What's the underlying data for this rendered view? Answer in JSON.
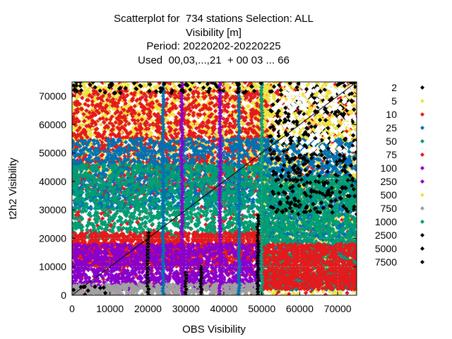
{
  "chart_data": {
    "type": "scatter",
    "title_lines": [
      "Scatterplot for  734 stations Selection: ALL",
      "Visibility [m]",
      "Period: 20220202-20220225",
      "Used  00,03,...,21  + 00 03 ... 66"
    ],
    "xlabel": "OBS Visibility",
    "ylabel": "t2h2 Visibility",
    "xlim": [
      0,
      75000
    ],
    "ylim": [
      0,
      75000
    ],
    "x_ticks": [
      0,
      10000,
      20000,
      30000,
      40000,
      50000,
      60000,
      70000
    ],
    "y_ticks": [
      0,
      10000,
      20000,
      30000,
      40000,
      50000,
      60000,
      70000
    ],
    "grid": true,
    "diagonal_line": true,
    "legend_placement": "right",
    "series": [
      {
        "name": "2",
        "color": "#000000",
        "marker": "diamond"
      },
      {
        "name": "5",
        "color": "#f0e442",
        "marker": "diamond"
      },
      {
        "name": "10",
        "color": "#e41a1c",
        "marker": "diamond"
      },
      {
        "name": "25",
        "color": "#0072b2",
        "marker": "diamond"
      },
      {
        "name": "50",
        "color": "#009e73",
        "marker": "diamond"
      },
      {
        "name": "75",
        "color": "#e41a1c",
        "marker": "diamond"
      },
      {
        "name": "100",
        "color": "#8a00cc",
        "marker": "diamond"
      },
      {
        "name": "250",
        "color": "#8a00cc",
        "marker": "diamond"
      },
      {
        "name": "500",
        "color": "#f0e442",
        "marker": "diamond"
      },
      {
        "name": "750",
        "color": "#a0a0a0",
        "marker": "diamond"
      },
      {
        "name": "1000",
        "color": "#009e73",
        "marker": "diamond"
      },
      {
        "name": "2500",
        "color": "#000000",
        "marker": "diamond"
      },
      {
        "name": "5000",
        "color": "#000000",
        "marker": "diamond"
      },
      {
        "name": "7500",
        "color": "#000000",
        "marker": "diamond"
      }
    ],
    "density_regions": [
      {
        "series": "10",
        "x": [
          0,
          75000
        ],
        "y": [
          0,
          75000
        ]
      },
      {
        "series": "5",
        "x": [
          0,
          52000
        ],
        "y": [
          42000,
          75000
        ]
      },
      {
        "series": "10",
        "x": [
          0,
          52000
        ],
        "y": [
          36000,
          72000
        ]
      },
      {
        "series": "25",
        "x": [
          0,
          52000
        ],
        "y": [
          30000,
          55000
        ]
      },
      {
        "series": "50",
        "x": [
          0,
          52000
        ],
        "y": [
          20000,
          46000
        ]
      },
      {
        "series": "10",
        "x": [
          0,
          52000
        ],
        "y": [
          10000,
          22000
        ]
      },
      {
        "series": "100",
        "x": [
          0,
          50000
        ],
        "y": [
          2000,
          18000
        ]
      },
      {
        "series": "750",
        "x": [
          0,
          50000
        ],
        "y": [
          0,
          4000
        ]
      },
      {
        "series": "5",
        "x": [
          50000,
          75000
        ],
        "y": [
          0,
          75000
        ]
      },
      {
        "series": "25",
        "x": [
          50000,
          75000
        ],
        "y": [
          2000,
          55000
        ]
      },
      {
        "series": "50",
        "x": [
          50000,
          75000
        ],
        "y": [
          2000,
          42000
        ]
      },
      {
        "series": "10",
        "x": [
          50000,
          75000
        ],
        "y": [
          2000,
          18000
        ]
      }
    ],
    "vertical_streaks": [
      {
        "series": "2500",
        "x": 20000,
        "y": [
          0,
          22000
        ]
      },
      {
        "series": "2500",
        "x": 49000,
        "y": [
          0,
          28000
        ]
      },
      {
        "series": "2500",
        "x": 30000,
        "y": [
          0,
          8000
        ]
      },
      {
        "series": "2500",
        "x": 34000,
        "y": [
          0,
          10000
        ]
      },
      {
        "series": "1000",
        "x": 50000,
        "y": [
          0,
          75000
        ]
      },
      {
        "series": "250",
        "x": 39000,
        "y": [
          0,
          75000
        ]
      },
      {
        "series": "250",
        "x": 29000,
        "y": [
          0,
          75000
        ]
      },
      {
        "series": "25",
        "x": 24000,
        "y": [
          0,
          75000
        ]
      },
      {
        "series": "25",
        "x": 44000,
        "y": [
          0,
          75000
        ]
      }
    ],
    "black_clusters": [
      {
        "series": "7500",
        "x": [
          0,
          10000
        ],
        "y": [
          0,
          3000
        ]
      },
      {
        "series": "7500",
        "x": [
          52000,
          75000
        ],
        "y": [
          28000,
          75000
        ]
      },
      {
        "series": "7500",
        "x": [
          0,
          50000
        ],
        "y": [
          71000,
          75000
        ]
      }
    ]
  }
}
